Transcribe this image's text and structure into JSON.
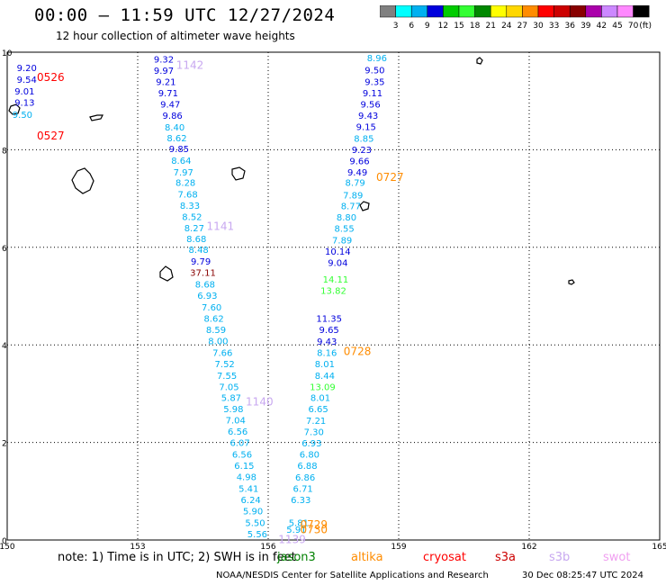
{
  "header": {
    "title": "00:00 — 11:59 UTC 12/27/2024",
    "subtitle": "12 hour collection of altimeter wave heights"
  },
  "colorbar": {
    "labels": [
      "3",
      "6",
      "9",
      "12",
      "15",
      "18",
      "21",
      "24",
      "27",
      "30",
      "33",
      "36",
      "39",
      "42",
      "45",
      "70",
      "(ft)"
    ],
    "colors": [
      "#808080",
      "#00ffff",
      "#00b0f0",
      "#0000dd",
      "#00cc00",
      "#33ff33",
      "#008800",
      "#ffff00",
      "#ffd700",
      "#ff8c00",
      "#ff0000",
      "#cc0000",
      "#880000",
      "#aa00aa",
      "#cc88ff",
      "#ff88ff",
      "#000000"
    ]
  },
  "footer": {
    "note": "note: 1) Time is in UTC; 2) SWH is in feet",
    "satellites": [
      {
        "name": "jason3",
        "color": "#008000"
      },
      {
        "name": "altika",
        "color": "#ff8c00"
      },
      {
        "name": "cryosat",
        "color": "#ff0000"
      },
      {
        "name": "s3a",
        "color": "#cc0000"
      },
      {
        "name": "s3b",
        "color": "#c8a8f0"
      },
      {
        "name": "swot",
        "color": "#f0a0f0"
      }
    ],
    "credit": "NOAA/NESDIS Center for Satellite Applications and Research",
    "timestamp": "30 Dec 08:25:47 UTC 2024"
  },
  "chart_data": {
    "type": "scatter",
    "xlim": [
      150,
      165
    ],
    "ylim": [
      0,
      10
    ],
    "x_ticks": [
      150,
      153,
      156,
      159,
      162,
      165
    ],
    "y_ticks": [
      0,
      2,
      4,
      6,
      8,
      10
    ],
    "grid": true,
    "time_labels": [
      {
        "text": "0526",
        "x": 151.0,
        "y": 9.5,
        "color": "#ff0000"
      },
      {
        "text": "0527",
        "x": 151.0,
        "y": 8.3,
        "color": "#ff0000"
      },
      {
        "text": "1142",
        "x": 154.2,
        "y": 9.75,
        "color": "#c8a8f0"
      },
      {
        "text": "1141",
        "x": 154.9,
        "y": 6.45,
        "color": "#c8a8f0"
      },
      {
        "text": "1140",
        "x": 155.8,
        "y": 2.85,
        "color": "#c8a8f0"
      },
      {
        "text": "1139",
        "x": 156.55,
        "y": 0.03,
        "color": "#c8a8f0"
      },
      {
        "text": "0727",
        "x": 158.8,
        "y": 7.45,
        "color": "#ff8c00"
      },
      {
        "text": "0728",
        "x": 158.05,
        "y": 3.88,
        "color": "#ff8c00"
      },
      {
        "text": "0729",
        "x": 157.05,
        "y": 0.33,
        "color": "#ff8c00"
      },
      {
        "text": "0730",
        "x": 157.05,
        "y": 0.23,
        "color": "#ff8c00"
      }
    ],
    "series": [
      {
        "name": "cryosat",
        "color": "#0000dd",
        "points": [
          {
            "x": 150.45,
            "y": 9.69,
            "v": "9.20",
            "c": "#0000dd"
          },
          {
            "x": 150.45,
            "y": 9.45,
            "v": "9.54",
            "c": "#0000dd"
          },
          {
            "x": 150.4,
            "y": 9.21,
            "v": "9.01",
            "c": "#0000dd"
          },
          {
            "x": 150.4,
            "y": 8.98,
            "v": "9.13",
            "c": "#0000dd"
          },
          {
            "x": 150.35,
            "y": 8.73,
            "v": "9.50",
            "c": "#00b0f0"
          }
        ]
      },
      {
        "name": "s3b",
        "color": "#0000dd",
        "points": [
          {
            "x": 153.6,
            "y": 9.86,
            "v": "9.32",
            "c": "#0000dd"
          },
          {
            "x": 153.6,
            "y": 9.63,
            "v": "9.97",
            "c": "#0000dd"
          },
          {
            "x": 153.65,
            "y": 9.4,
            "v": "9.21",
            "c": "#0000dd"
          },
          {
            "x": 153.7,
            "y": 9.17,
            "v": "9.71",
            "c": "#0000dd"
          },
          {
            "x": 153.75,
            "y": 8.94,
            "v": "9.47",
            "c": "#0000dd"
          },
          {
            "x": 153.8,
            "y": 8.71,
            "v": "9.86",
            "c": "#0000dd"
          },
          {
            "x": 153.85,
            "y": 8.47,
            "v": "8.40",
            "c": "#00b0f0"
          },
          {
            "x": 153.9,
            "y": 8.25,
            "v": "8.62",
            "c": "#00b0f0"
          },
          {
            "x": 153.95,
            "y": 8.03,
            "v": "9.85",
            "c": "#0000dd"
          },
          {
            "x": 154.0,
            "y": 7.79,
            "v": "8.64",
            "c": "#00b0f0"
          },
          {
            "x": 154.05,
            "y": 7.55,
            "v": "7.97",
            "c": "#00b0f0"
          },
          {
            "x": 154.1,
            "y": 7.33,
            "v": "8.28",
            "c": "#00b0f0"
          },
          {
            "x": 154.15,
            "y": 7.09,
            "v": "7.68",
            "c": "#00b0f0"
          },
          {
            "x": 154.2,
            "y": 6.86,
            "v": "8.33",
            "c": "#00b0f0"
          },
          {
            "x": 154.25,
            "y": 6.63,
            "v": "8.52",
            "c": "#00b0f0"
          },
          {
            "x": 154.3,
            "y": 6.4,
            "v": "8.27",
            "c": "#00b0f0"
          },
          {
            "x": 154.35,
            "y": 6.18,
            "v": "8.68",
            "c": "#00b0f0"
          },
          {
            "x": 154.4,
            "y": 5.96,
            "v": "8.48",
            "c": "#00b0f0"
          },
          {
            "x": 154.45,
            "y": 5.72,
            "v": "9.79",
            "c": "#0000dd"
          },
          {
            "x": 154.5,
            "y": 5.49,
            "v": "37.11",
            "c": "#880000"
          },
          {
            "x": 154.55,
            "y": 5.25,
            "v": "8.68",
            "c": "#00b0f0"
          },
          {
            "x": 154.6,
            "y": 5.02,
            "v": "6.93",
            "c": "#00b0f0"
          },
          {
            "x": 154.7,
            "y": 4.78,
            "v": "7.60",
            "c": "#00b0f0"
          },
          {
            "x": 154.75,
            "y": 4.55,
            "v": "8.62",
            "c": "#00b0f0"
          },
          {
            "x": 154.8,
            "y": 4.32,
            "v": "8.59",
            "c": "#00b0f0"
          },
          {
            "x": 154.85,
            "y": 4.09,
            "v": "8.00",
            "c": "#00b0f0"
          },
          {
            "x": 154.95,
            "y": 3.85,
            "v": "7.66",
            "c": "#00b0f0"
          },
          {
            "x": 155.0,
            "y": 3.62,
            "v": "7.52",
            "c": "#00b0f0"
          },
          {
            "x": 155.05,
            "y": 3.38,
            "v": "7.55",
            "c": "#00b0f0"
          },
          {
            "x": 155.1,
            "y": 3.15,
            "v": "7.05",
            "c": "#00b0f0"
          },
          {
            "x": 155.15,
            "y": 2.92,
            "v": "5.87",
            "c": "#00b0f0"
          },
          {
            "x": 155.2,
            "y": 2.69,
            "v": "5.98",
            "c": "#00b0f0"
          },
          {
            "x": 155.25,
            "y": 2.46,
            "v": "7.04",
            "c": "#00b0f0"
          },
          {
            "x": 155.3,
            "y": 2.23,
            "v": "6.56",
            "c": "#00b0f0"
          },
          {
            "x": 155.35,
            "y": 2.0,
            "v": "6.07",
            "c": "#00b0f0"
          },
          {
            "x": 155.4,
            "y": 1.76,
            "v": "6.56",
            "c": "#00b0f0"
          },
          {
            "x": 155.45,
            "y": 1.53,
            "v": "6.15",
            "c": "#00b0f0"
          },
          {
            "x": 155.5,
            "y": 1.3,
            "v": "4.98",
            "c": "#00b0f0"
          },
          {
            "x": 155.55,
            "y": 1.06,
            "v": "5.41",
            "c": "#00b0f0"
          },
          {
            "x": 155.6,
            "y": 0.83,
            "v": "6.24",
            "c": "#00b0f0"
          },
          {
            "x": 155.65,
            "y": 0.6,
            "v": "5.90",
            "c": "#00b0f0"
          },
          {
            "x": 155.7,
            "y": 0.36,
            "v": "5.50",
            "c": "#00b0f0"
          },
          {
            "x": 155.75,
            "y": 0.13,
            "v": "5.56",
            "c": "#00b0f0"
          }
        ]
      },
      {
        "name": "altika",
        "color": "#0000dd",
        "points": [
          {
            "x": 158.5,
            "y": 9.89,
            "v": "8.96",
            "c": "#00b0f0"
          },
          {
            "x": 158.45,
            "y": 9.64,
            "v": "9.50",
            "c": "#0000dd"
          },
          {
            "x": 158.45,
            "y": 9.4,
            "v": "9.35",
            "c": "#0000dd"
          },
          {
            "x": 158.4,
            "y": 9.17,
            "v": "9.11",
            "c": "#0000dd"
          },
          {
            "x": 158.35,
            "y": 8.94,
            "v": "9.56",
            "c": "#0000dd"
          },
          {
            "x": 158.3,
            "y": 8.71,
            "v": "9.43",
            "c": "#0000dd"
          },
          {
            "x": 158.25,
            "y": 8.48,
            "v": "9.15",
            "c": "#0000dd"
          },
          {
            "x": 158.2,
            "y": 8.24,
            "v": "8.85",
            "c": "#00b0f0"
          },
          {
            "x": 158.15,
            "y": 8.01,
            "v": "9.23",
            "c": "#0000dd"
          },
          {
            "x": 158.1,
            "y": 7.78,
            "v": "9.66",
            "c": "#0000dd"
          },
          {
            "x": 158.05,
            "y": 7.55,
            "v": "9.49",
            "c": "#0000dd"
          },
          {
            "x": 158.0,
            "y": 7.33,
            "v": "8.79",
            "c": "#00b0f0"
          },
          {
            "x": 157.95,
            "y": 7.08,
            "v": "7.89",
            "c": "#00b0f0"
          },
          {
            "x": 157.9,
            "y": 6.85,
            "v": "8.77",
            "c": "#00b0f0"
          },
          {
            "x": 157.8,
            "y": 6.62,
            "v": "8.80",
            "c": "#00b0f0"
          },
          {
            "x": 157.75,
            "y": 6.39,
            "v": "8.55",
            "c": "#00b0f0"
          },
          {
            "x": 157.7,
            "y": 6.15,
            "v": "7.89",
            "c": "#00b0f0"
          },
          {
            "x": 157.6,
            "y": 5.92,
            "v": "10.14",
            "c": "#0000dd"
          },
          {
            "x": 157.6,
            "y": 5.69,
            "v": "9.04",
            "c": "#0000dd"
          },
          {
            "x": 157.55,
            "y": 5.35,
            "v": "14.11",
            "c": "#33ff33"
          },
          {
            "x": 157.5,
            "y": 5.12,
            "v": "13.82",
            "c": "#33ff33"
          },
          {
            "x": 157.4,
            "y": 4.55,
            "v": "11.35",
            "c": "#0000dd"
          },
          {
            "x": 157.4,
            "y": 4.32,
            "v": "9.65",
            "c": "#0000dd"
          },
          {
            "x": 157.35,
            "y": 4.08,
            "v": "9.43",
            "c": "#0000dd"
          },
          {
            "x": 157.35,
            "y": 3.85,
            "v": "8.16",
            "c": "#00b0f0"
          },
          {
            "x": 157.3,
            "y": 3.62,
            "v": "8.01",
            "c": "#00b0f0"
          },
          {
            "x": 157.3,
            "y": 3.38,
            "v": "8.44",
            "c": "#00b0f0"
          },
          {
            "x": 157.25,
            "y": 3.15,
            "v": "13.09",
            "c": "#33ff33"
          },
          {
            "x": 157.2,
            "y": 2.92,
            "v": "8.01",
            "c": "#00b0f0"
          },
          {
            "x": 157.15,
            "y": 2.69,
            "v": "6.65",
            "c": "#00b0f0"
          },
          {
            "x": 157.1,
            "y": 2.45,
            "v": "7.21",
            "c": "#00b0f0"
          },
          {
            "x": 157.05,
            "y": 2.22,
            "v": "7.30",
            "c": "#00b0f0"
          },
          {
            "x": 157.0,
            "y": 1.99,
            "v": "6.93",
            "c": "#00b0f0"
          },
          {
            "x": 156.95,
            "y": 1.76,
            "v": "6.80",
            "c": "#00b0f0"
          },
          {
            "x": 156.9,
            "y": 1.53,
            "v": "6.88",
            "c": "#00b0f0"
          },
          {
            "x": 156.85,
            "y": 1.29,
            "v": "6.86",
            "c": "#00b0f0"
          },
          {
            "x": 156.8,
            "y": 1.06,
            "v": "6.71",
            "c": "#00b0f0"
          },
          {
            "x": 156.75,
            "y": 0.83,
            "v": "6.33",
            "c": "#00b0f0"
          },
          {
            "x": 156.7,
            "y": 0.36,
            "v": "5.81",
            "c": "#00b0f0"
          },
          {
            "x": 156.65,
            "y": 0.22,
            "v": "5.91",
            "c": "#00b0f0"
          }
        ]
      }
    ]
  }
}
